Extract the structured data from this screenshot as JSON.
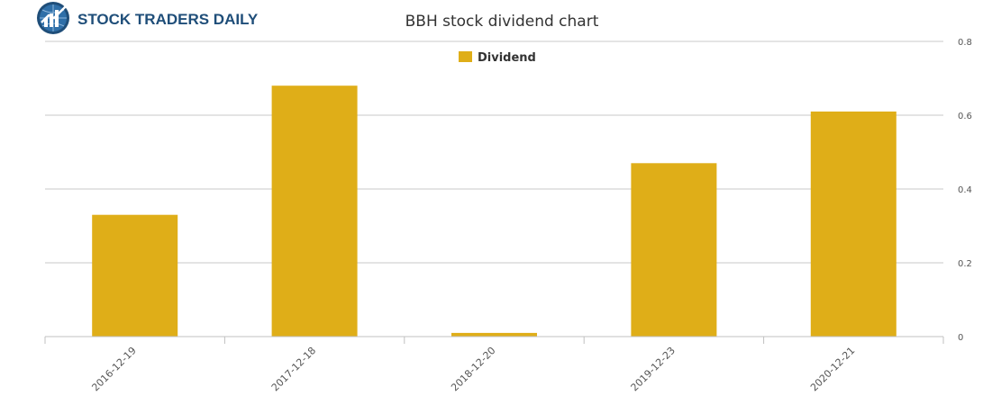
{
  "brand": {
    "name": "STOCK TRADERS DAILY",
    "color": "#1f4e79"
  },
  "chart_data": {
    "type": "bar",
    "title": "BBH stock dividend chart",
    "categories": [
      "2016-12-19",
      "2017-12-18",
      "2018-12-20",
      "2019-12-23",
      "2020-12-21"
    ],
    "series": [
      {
        "name": "Dividend",
        "values": [
          0.33,
          0.68,
          0.01,
          0.47,
          0.61
        ],
        "color": "#dfae18"
      }
    ],
    "y_ticks": [
      "0",
      "0.2",
      "0.4",
      "0.6",
      "0.8"
    ],
    "ylim": [
      0,
      0.8
    ],
    "xlabel": "",
    "ylabel": "",
    "grid": true,
    "legend_position": "top-center",
    "y_axis_side": "right"
  }
}
